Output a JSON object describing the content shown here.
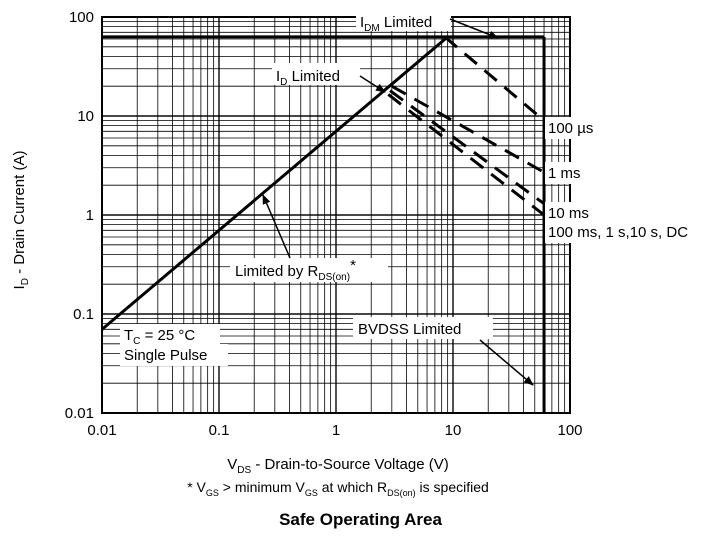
{
  "chart_data": {
    "type": "line",
    "title": "Safe Operating Area",
    "xscale": "log",
    "yscale": "log",
    "xlim": [
      0.01,
      100
    ],
    "ylim": [
      0.01,
      100
    ],
    "grid": true,
    "xticks": [
      "0.01",
      "0.1",
      "1",
      "10",
      "100"
    ],
    "yticks": [
      "0.01",
      "0.1",
      "1",
      "10",
      "100"
    ],
    "xlabel": {
      "main": "V",
      "sub": "DS",
      "rest": " - Drain-to-Source Voltage (V)"
    },
    "ylabel": {
      "main": "I",
      "sub": "D",
      "rest": " - Drain Current (A)"
    },
    "footnote": {
      "p1": "* V",
      "s1": "GS",
      "p2": " > minimum V",
      "s2": "GS",
      "p3": " at which R",
      "s3": "DS(on)",
      "p4": " is specified"
    },
    "limits": {
      "idm_limit_a": 63,
      "bvdss_limit_v": 60,
      "rdson_line": [
        [
          0.01,
          0.07
        ],
        [
          9,
          63
        ]
      ]
    },
    "series": [
      {
        "name": "100 µs",
        "style": "dashed",
        "points": [
          [
            8.5,
            63
          ],
          [
            60,
            9
          ]
        ]
      },
      {
        "name": "1 ms",
        "style": "dashed",
        "points": [
          [
            3.0,
            20
          ],
          [
            60,
            2.7
          ]
        ]
      },
      {
        "name": "10 ms",
        "style": "dashed",
        "points": [
          [
            2.9,
            18
          ],
          [
            60,
            1.3
          ]
        ]
      },
      {
        "name": "100 ms, 1 s,10 s, DC",
        "style": "dashed",
        "points": [
          [
            2.8,
            16.5
          ],
          [
            60,
            1.0
          ]
        ]
      }
    ],
    "annotations": {
      "idm": {
        "main": "I",
        "sub": "DM",
        "rest": " Limited"
      },
      "id": {
        "main": "I",
        "sub": "D",
        "rest": " Limited"
      },
      "rdson": {
        "main": "Limited by R",
        "sub": "DS(on)",
        "rest": "*"
      },
      "tc": {
        "main": "T",
        "sub": "C",
        "rest": " = 25 °C"
      },
      "pulse": "Single Pulse",
      "bvdss": "BVDSS Limited",
      "l100us": "100 µs",
      "l1ms": "1 ms",
      "l10ms": "10 ms",
      "ldc": "100 ms, 1 s,10 s, DC"
    }
  }
}
